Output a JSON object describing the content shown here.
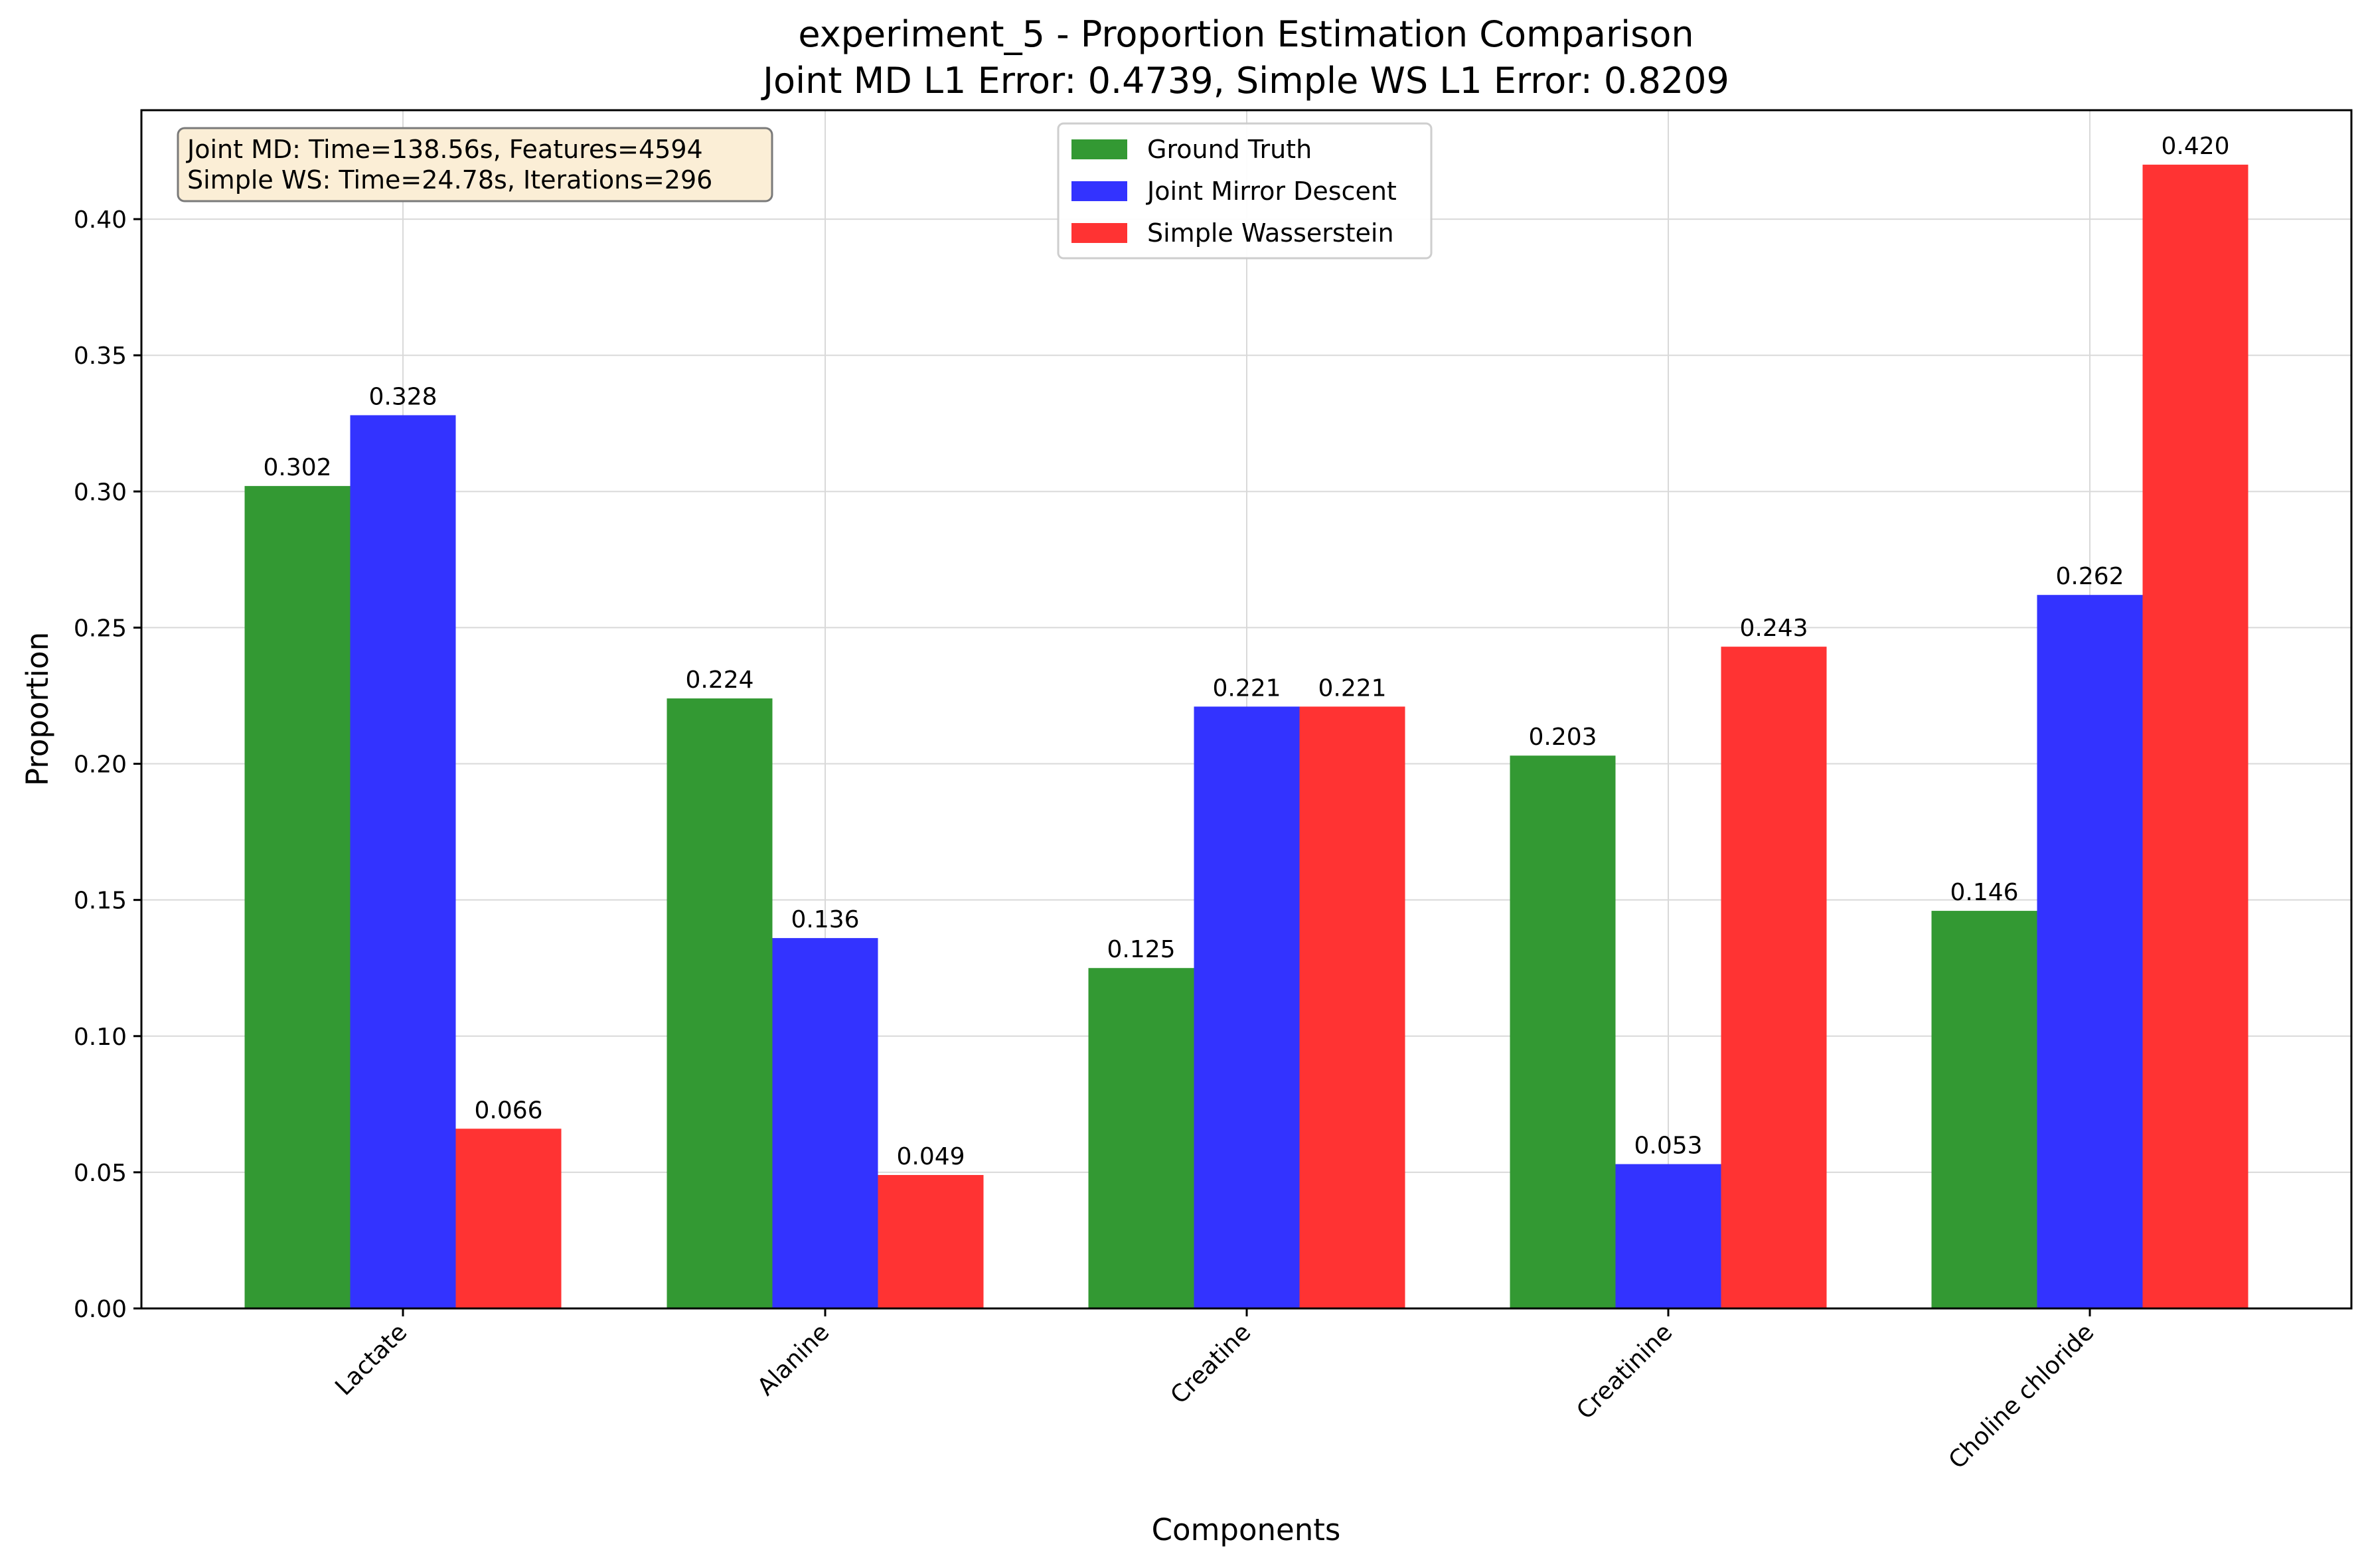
{
  "chart_data": {
    "type": "bar",
    "title": "experiment_5 - Proportion Estimation Comparison",
    "subtitle": "Joint MD L1 Error: 0.4739, Simple WS L1 Error: 0.8209",
    "xlabel": "Components",
    "ylabel": "Proportion",
    "ylim": [
      0,
      0.44
    ],
    "yticks": [
      "0.00",
      "0.05",
      "0.10",
      "0.15",
      "0.20",
      "0.25",
      "0.30",
      "0.35",
      "0.40"
    ],
    "grid": true,
    "legend_position": "top-center",
    "categories": [
      "Lactate",
      "Alanine",
      "Creatine",
      "Creatinine",
      "Choline chloride"
    ],
    "series": [
      {
        "name": "Ground Truth",
        "color": "#339933",
        "values": [
          0.302,
          0.224,
          0.125,
          0.203,
          0.146
        ],
        "labels": [
          "0.302",
          "0.224",
          "0.125",
          "0.203",
          "0.146"
        ]
      },
      {
        "name": "Joint Mirror Descent",
        "color": "#3333ff",
        "values": [
          0.328,
          0.136,
          0.221,
          0.053,
          0.262
        ],
        "labels": [
          "0.328",
          "0.136",
          "0.221",
          "0.053",
          "0.262"
        ]
      },
      {
        "name": "Simple Wasserstein",
        "color": "#ff3333",
        "values": [
          0.066,
          0.049,
          0.221,
          0.243,
          0.42
        ],
        "labels": [
          "0.066",
          "0.049",
          "0.221",
          "0.243",
          "0.420"
        ]
      }
    ],
    "annotation": {
      "line1": "Joint MD: Time=138.56s, Features=4594",
      "line2": "Simple WS: Time=24.78s, Iterations=296"
    }
  }
}
